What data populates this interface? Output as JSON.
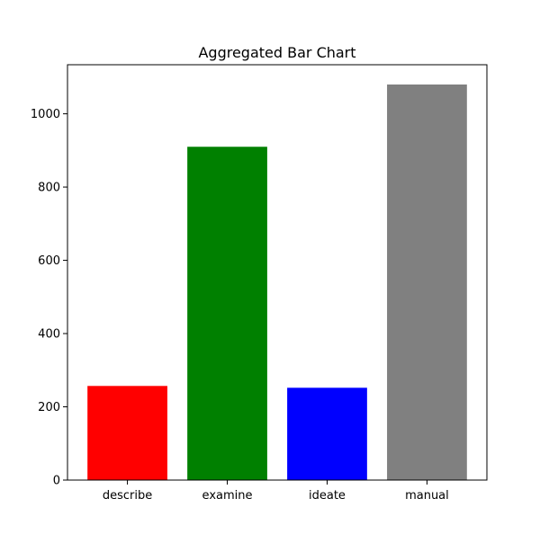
{
  "chart_data": {
    "type": "bar",
    "title": "Aggregated Bar Chart",
    "xlabel": "",
    "ylabel": "",
    "categories": [
      "describe",
      "examine",
      "ideate",
      "manual"
    ],
    "values": [
      257,
      910,
      252,
      1080
    ],
    "colors": [
      "#ff0000",
      "#008000",
      "#0000ff",
      "#808080"
    ],
    "ylim": [
      0,
      1134
    ],
    "yticks": [
      0,
      200,
      400,
      600,
      800,
      1000
    ],
    "grid": false,
    "legend": "none"
  }
}
